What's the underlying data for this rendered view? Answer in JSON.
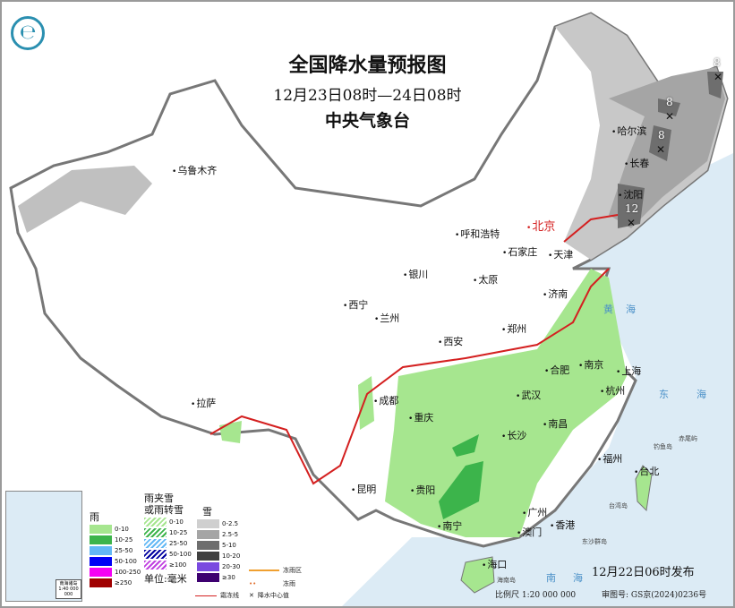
{
  "title": {
    "main": "全国降水量预报图",
    "period": "12月23日08时—24日08时",
    "agency": "中央气象台"
  },
  "logo": {
    "icon": "cma-logo-icon"
  },
  "cities": [
    "乌鲁木齐",
    "哈尔滨",
    "长春",
    "沈阳",
    "北京",
    "天津",
    "呼和浩特",
    "石家庄",
    "太原",
    "银川",
    "济南",
    "西宁",
    "兰州",
    "郑州",
    "西安",
    "合肥",
    "南京",
    "上海",
    "武汉",
    "杭州",
    "成都",
    "拉萨",
    "重庆",
    "长沙",
    "南昌",
    "福州",
    "台北",
    "贵阳",
    "昆明",
    "广州",
    "澳门",
    "香港",
    "南宁",
    "海口"
  ],
  "seas": [
    "黄",
    "海",
    "东",
    "海",
    "南",
    "海"
  ],
  "islands": [
    "台湾岛",
    "钓鱼岛",
    "赤尾屿",
    "东沙群岛",
    "海南岛"
  ],
  "snow_centers": [
    "8",
    "8",
    "8",
    "12"
  ],
  "legend": {
    "rain": {
      "title": "雨",
      "items": [
        {
          "label": "0-10",
          "color": "#a6e68f"
        },
        {
          "label": "10-25",
          "color": "#3cb44b"
        },
        {
          "label": "25-50",
          "color": "#62b8f5"
        },
        {
          "label": "50-100",
          "color": "#0000f5"
        },
        {
          "label": "100-250",
          "color": "#f500f5"
        },
        {
          "label": "≥250",
          "color": "#a00000"
        }
      ]
    },
    "sleet": {
      "title": "雨夹雪\n或雨转雪",
      "title1": "雨夹雪",
      "title2": "或雨转雪",
      "items": [
        {
          "label": "0-10",
          "color": "#a6e68f"
        },
        {
          "label": "10-25",
          "color": "#3cb44b"
        },
        {
          "label": "25-50",
          "color": "#62b8f5"
        },
        {
          "label": "50-100",
          "color": "#0000a0"
        },
        {
          "label": "≥100",
          "color": "#c040e0"
        }
      ]
    },
    "snow": {
      "title": "雪",
      "items": [
        {
          "label": "0-2.5",
          "color": "#cfcfcf"
        },
        {
          "label": "2.5-5",
          "color": "#a5a5a5"
        },
        {
          "label": "5-10",
          "color": "#6e6e6e"
        },
        {
          "label": "10-20",
          "color": "#404040"
        },
        {
          "label": "20-30",
          "color": "#7a4ae0"
        },
        {
          "label": "≥30",
          "color": "#3d0070"
        }
      ]
    },
    "unit": "单位:毫米",
    "freezing_rain_area": "冻雨区",
    "freezing_rain": "冻雨",
    "frost_line": "霜冻线",
    "center_value": "降水中心值"
  },
  "inset": {
    "title": "南海诸岛",
    "scale": "1:40 000 000"
  },
  "footer": {
    "publish": "12月22日06时发布",
    "scale": "比例尺 1:20 000 000",
    "review": "审图号: GS京(2024)0236号"
  }
}
